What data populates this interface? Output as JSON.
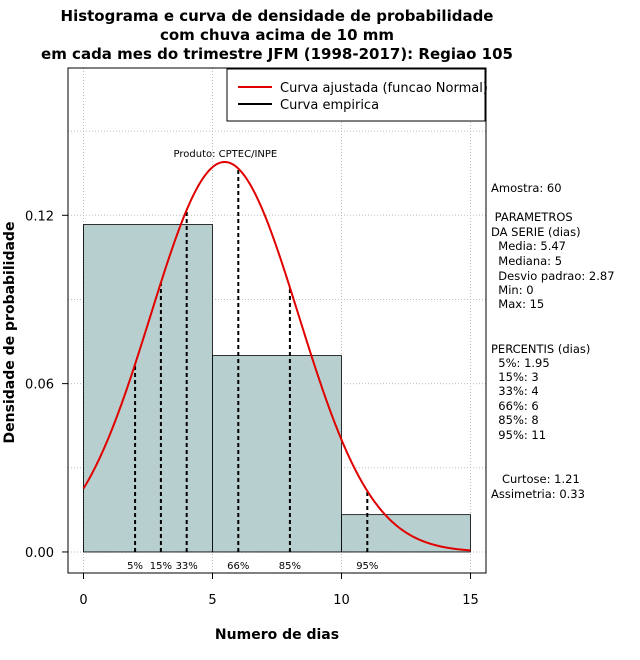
{
  "chart_data": {
    "type": "bar",
    "title_lines": [
      "Histograma e curva de densidade de probabilidade",
      "com chuva acima de 10 mm",
      "em cada mes do trimestre JFM (1998-2017): Regiao 105"
    ],
    "xlabel": "Numero de dias",
    "ylabel": "Densidade de probabilidade",
    "xlim": [
      -0.6,
      15.6
    ],
    "ylim": [
      -0.0075,
      0.1725
    ],
    "x_ticks": [
      "0",
      "5",
      "10",
      "15"
    ],
    "x_tick_values": [
      0,
      5,
      10,
      15
    ],
    "y_ticks": [
      "0.00",
      "0.06",
      "0.12"
    ],
    "y_tick_values": [
      0,
      0.06,
      0.12
    ],
    "grid": true,
    "histogram": [
      {
        "x0": 0,
        "x1": 5,
        "density": 0.1167
      },
      {
        "x0": 5,
        "x1": 10,
        "density": 0.07
      },
      {
        "x0": 10,
        "x1": 15,
        "density": 0.0133
      }
    ],
    "bar_color": "#b8cfcf",
    "curve": {
      "name": "Curva ajustada (funcao Normal)",
      "mean": 5.47,
      "sd": 2.87,
      "x_range": [
        0,
        15
      ],
      "color": "#e00000"
    },
    "empirical": {
      "name": "Curva empirica",
      "color": "#000000"
    },
    "legend_position": "top-right",
    "percentiles": [
      {
        "label": "5%",
        "x": 2
      },
      {
        "label": "15%",
        "x": 3
      },
      {
        "label": "33%",
        "x": 4
      },
      {
        "label": "66%",
        "x": 6
      },
      {
        "label": "85%",
        "x": 8
      },
      {
        "label": "95%",
        "x": 11
      }
    ],
    "annotation": "Produto: CPTEC/INPE"
  },
  "side_panel": {
    "lines": [
      "Amostra: 60",
      " PARAMETROS",
      "DA SERIE (dias)",
      "  Media: 5.47",
      "  Mediana: 5",
      "  Desvio padrao: 2.87",
      "  Min: 0",
      "  Max: 15",
      "PERCENTIS (dias)",
      "  5%: 1.95",
      "  15%: 3",
      "  33%: 4",
      "  66%: 6",
      "  85%: 8",
      "  95%: 11",
      "   Curtose: 1.21",
      "Assimetria: 0.33"
    ]
  }
}
